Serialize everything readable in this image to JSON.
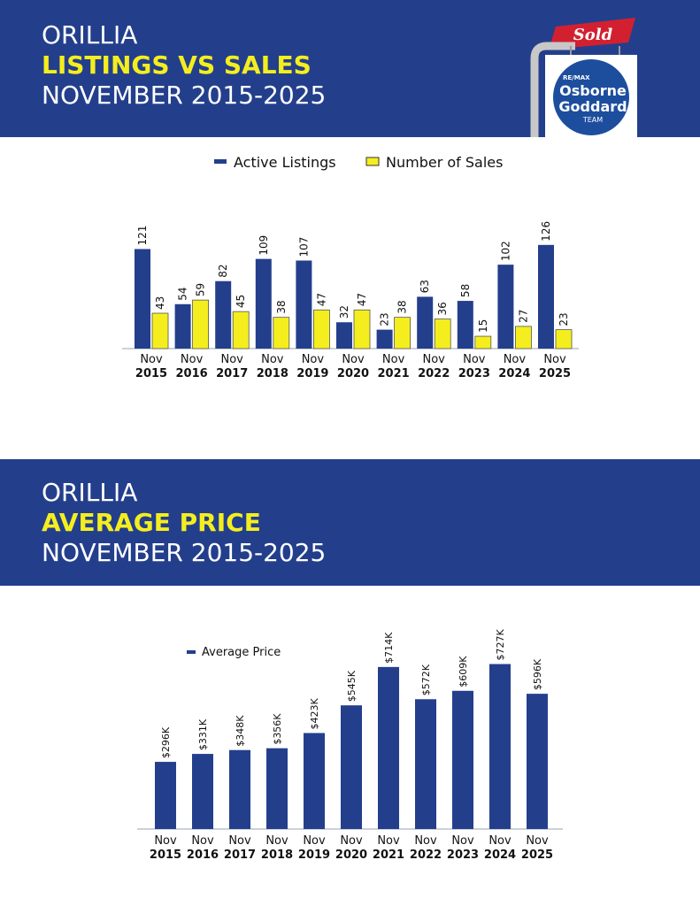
{
  "header1": {
    "line1": "ORILLIA",
    "line2": "LISTINGS VS SALES",
    "line3": "NOVEMBER 2015-2025"
  },
  "header2": {
    "line1": "ORILLIA",
    "line2": "AVERAGE PRICE",
    "line3": "NOVEMBER 2015-2025"
  },
  "logo": {
    "sign": "Sold",
    "brand": "RE/MAX",
    "line1": "Osborne",
    "line2": "Goddard",
    "line3": "TEAM"
  },
  "colors": {
    "navy": "#233f8c",
    "bar_blue": "#233f8c",
    "bar_yellow": "#f5ee1e",
    "sign_red": "#d32030"
  },
  "chart_data": [
    {
      "type": "bar",
      "categories": [
        [
          "Nov",
          "2015"
        ],
        [
          "Nov",
          "2016"
        ],
        [
          "Nov",
          "2017"
        ],
        [
          "Nov",
          "2018"
        ],
        [
          "Nov",
          "2019"
        ],
        [
          "Nov",
          "2020"
        ],
        [
          "Nov",
          "2021"
        ],
        [
          "Nov",
          "2022"
        ],
        [
          "Nov",
          "2023"
        ],
        [
          "Nov",
          "2024"
        ],
        [
          "Nov",
          "2025"
        ]
      ],
      "series": [
        {
          "name": "Active Listings",
          "color": "#233f8c",
          "values": [
            121,
            54,
            82,
            109,
            107,
            32,
            23,
            63,
            58,
            102,
            126
          ]
        },
        {
          "name": "Number of Sales",
          "color": "#f5ee1e",
          "values": [
            43,
            59,
            45,
            38,
            47,
            47,
            38,
            36,
            15,
            27,
            23
          ]
        }
      ],
      "ylim": [
        0,
        140
      ],
      "legend": "top"
    },
    {
      "type": "bar",
      "categories": [
        [
          "Nov",
          "2015"
        ],
        [
          "Nov",
          "2016"
        ],
        [
          "Nov",
          "2017"
        ],
        [
          "Nov",
          "2018"
        ],
        [
          "Nov",
          "2019"
        ],
        [
          "Nov",
          "2020"
        ],
        [
          "Nov",
          "2021"
        ],
        [
          "Nov",
          "2022"
        ],
        [
          "Nov",
          "2023"
        ],
        [
          "Nov",
          "2024"
        ],
        [
          "Nov",
          "2025"
        ]
      ],
      "series": [
        {
          "name": "Average Price",
          "color": "#233f8c",
          "values": [
            296,
            331,
            348,
            356,
            423,
            545,
            714,
            572,
            609,
            727,
            596
          ]
        }
      ],
      "data_labels": [
        "$296K",
        "$331K",
        "$348K",
        "$356K",
        "$423K",
        "$545K",
        "$714K",
        "$572K",
        "$609K",
        "$727K",
        "$596K"
      ],
      "ylim": [
        0,
        750
      ],
      "legend": "top-left"
    }
  ]
}
